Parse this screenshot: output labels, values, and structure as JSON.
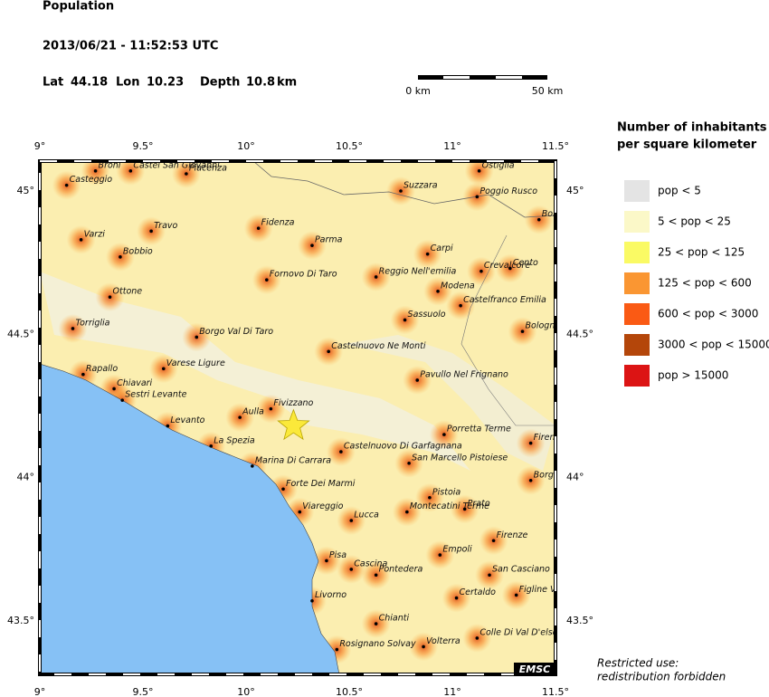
{
  "header": {
    "title": "Population",
    "datetime": "2013/06/21 - 11:52:53 UTC",
    "lat_label": "Lat",
    "lon_label": "Lon",
    "depth_label": "Depth",
    "depth_unit": "km"
  },
  "event": {
    "lat": 44.18,
    "lon": 10.23,
    "depth": 10.8
  },
  "scale_bar": {
    "labels": [
      "0 km",
      "50 km"
    ]
  },
  "map": {
    "lon_ticks": [
      {
        "value": 9,
        "label": "9°"
      },
      {
        "value": 9.5,
        "label": "9.5°"
      },
      {
        "value": 10,
        "label": "10°"
      },
      {
        "value": 10.5,
        "label": "10.5°"
      },
      {
        "value": 11,
        "label": "11°"
      },
      {
        "value": 11.5,
        "label": "11.5°"
      }
    ],
    "lat_ticks": [
      {
        "value": 45,
        "label": "45°"
      },
      {
        "value": 44.5,
        "label": "44.5°"
      },
      {
        "value": 44,
        "label": "44°"
      },
      {
        "value": 43.5,
        "label": "43.5°"
      }
    ],
    "cities": [
      {
        "name": "Broni",
        "lon": 9.27,
        "lat": 45.07
      },
      {
        "name": "Castel San Giovanni",
        "lon": 9.44,
        "lat": 45.07
      },
      {
        "name": "Piacenza",
        "lon": 9.71,
        "lat": 45.06
      },
      {
        "name": "Casteggio",
        "lon": 9.13,
        "lat": 45.02
      },
      {
        "name": "Ostiglia",
        "lon": 11.13,
        "lat": 45.07
      },
      {
        "name": "Suzzara",
        "lon": 10.75,
        "lat": 45.0
      },
      {
        "name": "Poggio Rusco",
        "lon": 11.12,
        "lat": 44.98
      },
      {
        "name": "Bon",
        "lon": 11.42,
        "lat": 44.9
      },
      {
        "name": "Travo",
        "lon": 9.54,
        "lat": 44.86
      },
      {
        "name": "Varzi",
        "lon": 9.2,
        "lat": 44.83
      },
      {
        "name": "Fidenza",
        "lon": 10.06,
        "lat": 44.87
      },
      {
        "name": "Parma",
        "lon": 10.32,
        "lat": 44.81
      },
      {
        "name": "Carpi",
        "lon": 10.88,
        "lat": 44.78
      },
      {
        "name": "Bobbio",
        "lon": 9.39,
        "lat": 44.77
      },
      {
        "name": "Crevalcore",
        "lon": 11.14,
        "lat": 44.72
      },
      {
        "name": "Cento",
        "lon": 11.28,
        "lat": 44.73
      },
      {
        "name": "Reggio Nell'emilia",
        "lon": 10.63,
        "lat": 44.7
      },
      {
        "name": "Fornovo Di Taro",
        "lon": 10.1,
        "lat": 44.69
      },
      {
        "name": "Modena",
        "lon": 10.93,
        "lat": 44.65
      },
      {
        "name": "Ottone",
        "lon": 9.34,
        "lat": 44.63
      },
      {
        "name": "Castelfranco Emilia",
        "lon": 11.04,
        "lat": 44.6
      },
      {
        "name": "Sassuolo",
        "lon": 10.77,
        "lat": 44.55
      },
      {
        "name": "Torriglia",
        "lon": 9.16,
        "lat": 44.52
      },
      {
        "name": "Bologna",
        "lon": 11.34,
        "lat": 44.51
      },
      {
        "name": "Borgo Val Di Taro",
        "lon": 9.76,
        "lat": 44.49
      },
      {
        "name": "Castelnuovo Ne Monti",
        "lon": 10.4,
        "lat": 44.44
      },
      {
        "name": "Varese Ligure",
        "lon": 9.6,
        "lat": 44.38
      },
      {
        "name": "Pavullo Nel Frignano",
        "lon": 10.83,
        "lat": 44.34
      },
      {
        "name": "Rapallo",
        "lon": 9.21,
        "lat": 44.36
      },
      {
        "name": "Chiavari",
        "lon": 9.36,
        "lat": 44.31
      },
      {
        "name": "Sestri Levante",
        "lon": 9.4,
        "lat": 44.27
      },
      {
        "name": "Fivizzano",
        "lon": 10.12,
        "lat": 44.24
      },
      {
        "name": "Aulla",
        "lon": 9.97,
        "lat": 44.21
      },
      {
        "name": "Levanto",
        "lon": 9.62,
        "lat": 44.18
      },
      {
        "name": "Porretta Terme",
        "lon": 10.96,
        "lat": 44.15
      },
      {
        "name": "Firenz",
        "lon": 11.38,
        "lat": 44.12
      },
      {
        "name": "La Spezia",
        "lon": 9.83,
        "lat": 44.11
      },
      {
        "name": "Castelnuovo Di Garfagnana",
        "lon": 10.46,
        "lat": 44.09
      },
      {
        "name": "San Marcello Pistoiese",
        "lon": 10.79,
        "lat": 44.05
      },
      {
        "name": "Marina Di Carrara",
        "lon": 10.03,
        "lat": 44.04
      },
      {
        "name": "Borgo",
        "lon": 11.38,
        "lat": 43.99
      },
      {
        "name": "Forte Dei Marmi",
        "lon": 10.18,
        "lat": 43.96
      },
      {
        "name": "Pistoia",
        "lon": 10.89,
        "lat": 43.93
      },
      {
        "name": "Viareggio",
        "lon": 10.26,
        "lat": 43.88
      },
      {
        "name": "Montecatini Terme",
        "lon": 10.78,
        "lat": 43.88
      },
      {
        "name": "Prato",
        "lon": 11.06,
        "lat": 43.89
      },
      {
        "name": "Lucca",
        "lon": 10.51,
        "lat": 43.85
      },
      {
        "name": "Firenze",
        "lon": 11.2,
        "lat": 43.78
      },
      {
        "name": "Pisa",
        "lon": 10.39,
        "lat": 43.71
      },
      {
        "name": "Empoli",
        "lon": 10.94,
        "lat": 43.73
      },
      {
        "name": "Cascina",
        "lon": 10.51,
        "lat": 43.68
      },
      {
        "name": "Pontedera",
        "lon": 10.63,
        "lat": 43.66
      },
      {
        "name": "San Casciano",
        "lon": 11.18,
        "lat": 43.66
      },
      {
        "name": "Figline V",
        "lon": 11.31,
        "lat": 43.59
      },
      {
        "name": "Certaldo",
        "lon": 11.02,
        "lat": 43.58
      },
      {
        "name": "Livorno",
        "lon": 10.32,
        "lat": 43.57
      },
      {
        "name": "Chianti",
        "lon": 10.63,
        "lat": 43.49
      },
      {
        "name": "Volterra",
        "lon": 10.86,
        "lat": 43.41
      },
      {
        "name": "Rosignano Solvay",
        "lon": 10.44,
        "lat": 43.4
      },
      {
        "name": "Colle Di Val D'else",
        "lon": 11.12,
        "lat": 43.44
      }
    ]
  },
  "legend": {
    "title_lines": [
      "Number of inhabitants",
      "per square kilometer"
    ],
    "items": [
      {
        "label": "pop < 5",
        "color": "#e4e4e4"
      },
      {
        "label": "5 < pop < 25",
        "color": "#fbf8c8"
      },
      {
        "label": "25 < pop < 125",
        "color": "#fafa64"
      },
      {
        "label": "125 < pop < 600",
        "color": "#fa9632"
      },
      {
        "label": "600 < pop < 3000",
        "color": "#fa5a14"
      },
      {
        "label": "3000 < pop < 15000",
        "color": "#b4460a"
      },
      {
        "label": "pop > 15000",
        "color": "#dc1414"
      }
    ]
  },
  "footer": {
    "notice": [
      "Restricted use:",
      "redistribution forbidden"
    ],
    "logo": "EMSC"
  }
}
